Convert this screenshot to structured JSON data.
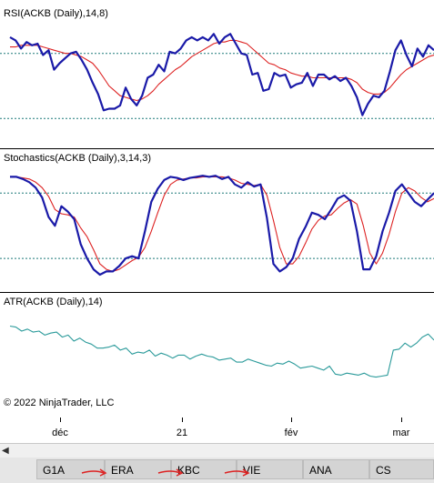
{
  "panels": [
    {
      "label": "RSI(ACKB (Daily),14,8)"
    },
    {
      "label": "Stochastics(ACKB (Daily),3,14,3)"
    },
    {
      "label": "ATR(ACKB (Daily),14)"
    }
  ],
  "copyright": "© 2022 NinjaTrader, LLC",
  "xaxis": {
    "labels": [
      "déc",
      "21",
      "fév",
      "mar"
    ]
  },
  "tabs": [
    "G1A",
    "ERA",
    "KBC",
    "VIE",
    "ANA",
    "CS"
  ],
  "colors": {
    "main": "#1a1aa8",
    "signal": "#dd2222",
    "atr": "#2a9a9a",
    "hline": "#1f7a7a",
    "arrow": "#dd2222"
  },
  "chart_data": [
    {
      "type": "line",
      "title": "RSI(ACKB (Daily),14,8)",
      "ylim": [
        15,
        90
      ],
      "hlines": [
        70,
        30
      ],
      "series": [
        {
          "values": [
            80,
            78,
            73,
            77,
            75,
            76,
            69,
            72,
            60,
            64,
            67,
            70,
            71,
            66,
            60,
            52,
            45,
            35,
            36,
            36,
            38,
            49,
            42,
            38,
            44,
            55,
            57,
            63,
            59,
            71,
            70,
            73,
            78,
            80,
            78,
            80,
            78,
            82,
            76,
            80,
            82,
            76,
            70,
            69,
            57,
            58,
            47,
            48,
            58,
            56,
            57,
            49,
            51,
            52,
            58,
            50,
            57,
            57,
            54,
            56,
            53,
            55,
            50,
            43,
            32,
            39,
            44,
            43,
            47,
            59,
            72,
            78,
            69,
            62,
            73,
            68,
            75,
            72
          ]
        },
        {
          "values": [
            74,
            74,
            75,
            75,
            75,
            75,
            74,
            73,
            72,
            71,
            70,
            70,
            69,
            68,
            66,
            64,
            60,
            55,
            50,
            47,
            44,
            43,
            42,
            41,
            42,
            44,
            47,
            51,
            54,
            57,
            60,
            62,
            65,
            68,
            70,
            72,
            74,
            76,
            77,
            77,
            78,
            78,
            77,
            76,
            73,
            70,
            67,
            64,
            63,
            61,
            60,
            58,
            57,
            56,
            56,
            55,
            55,
            55,
            55,
            55,
            55,
            55,
            54,
            52,
            48,
            46,
            45,
            45,
            46,
            49,
            53,
            57,
            60,
            62,
            64,
            66,
            68,
            69
          ]
        }
      ]
    },
    {
      "type": "line",
      "title": "Stochastics(ACKB (Daily),3,14,3)",
      "ylim": [
        -5,
        107
      ],
      "hlines": [
        80,
        20
      ],
      "series": [
        {
          "values": [
            95,
            95,
            93,
            90,
            85,
            76,
            58,
            50,
            68,
            63,
            56,
            33,
            20,
            10,
            5,
            8,
            8,
            13,
            20,
            22,
            20,
            45,
            72,
            84,
            92,
            95,
            94,
            92,
            94,
            95,
            96,
            95,
            96,
            93,
            95,
            88,
            85,
            90,
            86,
            88,
            57,
            15,
            8,
            12,
            20,
            38,
            49,
            62,
            60,
            56,
            65,
            75,
            78,
            73,
            45,
            10,
            10,
            22,
            45,
            62,
            82,
            88,
            80,
            72,
            68,
            74,
            80
          ]
        },
        {
          "values": [
            95,
            95,
            94,
            93,
            90,
            85,
            77,
            65,
            61,
            60,
            58,
            48,
            40,
            28,
            15,
            10,
            8,
            10,
            14,
            18,
            21,
            30,
            45,
            62,
            78,
            88,
            92,
            93,
            94,
            94,
            95,
            95,
            95,
            95,
            94,
            92,
            89,
            88,
            87,
            88,
            78,
            55,
            30,
            15,
            15,
            22,
            34,
            47,
            55,
            59,
            60,
            66,
            71,
            74,
            70,
            50,
            25,
            15,
            25,
            42,
            63,
            80,
            85,
            82,
            76,
            72,
            75
          ]
        }
      ]
    },
    {
      "type": "line",
      "title": "ATR(ACKB (Daily),14)",
      "ylim": [
        0,
        100
      ],
      "series": [
        {
          "values": [
            85,
            84,
            80,
            82,
            79,
            80,
            76,
            78,
            79,
            74,
            76,
            70,
            73,
            69,
            67,
            63,
            63,
            64,
            66,
            61,
            63,
            57,
            59,
            58,
            61,
            55,
            58,
            56,
            53,
            56,
            56,
            52,
            55,
            57,
            55,
            54,
            51,
            52,
            53,
            49,
            49,
            52,
            50,
            48,
            46,
            45,
            48,
            47,
            50,
            47,
            43,
            44,
            45,
            43,
            41,
            45,
            37,
            36,
            38,
            37,
            36,
            38,
            35,
            34,
            35,
            36,
            61,
            62,
            68,
            64,
            68,
            74,
            77,
            71
          ]
        }
      ]
    }
  ]
}
